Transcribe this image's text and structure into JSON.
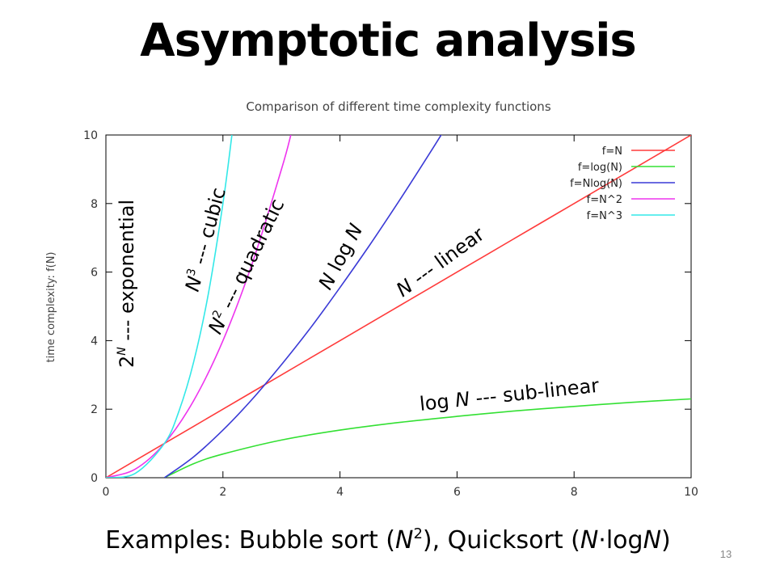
{
  "slide": {
    "title": "Asymptotic analysis",
    "page_number": "13",
    "caption": {
      "prefix": "Examples: Bubble sort (",
      "bubble_term": "N",
      "bubble_exp": "2",
      "middle": "), Quicksort (",
      "quick_n": "N",
      "dot": "·",
      "quick_log": "log",
      "quick_n2": "N",
      "suffix": ")"
    }
  },
  "chart_data": {
    "type": "line",
    "title": "Comparison of different time complexity functions",
    "xlabel": "",
    "ylabel": "time complexity: f(N)",
    "xlim": [
      0,
      10
    ],
    "ylim": [
      0,
      10
    ],
    "xticks": [
      "0",
      "2",
      "4",
      "6",
      "8",
      "10"
    ],
    "yticks": [
      "0",
      "2",
      "4",
      "6",
      "8",
      "10"
    ],
    "grid": false,
    "legend_position": "top-right",
    "series": [
      {
        "name": "f=N",
        "color": "#ff3b3b",
        "x": [
          0,
          1,
          2,
          3,
          4,
          5,
          6,
          7,
          8,
          9,
          10
        ],
        "y": [
          0,
          1,
          2,
          3,
          4,
          5,
          6,
          7,
          8,
          9,
          10
        ]
      },
      {
        "name": "f=log(N)",
        "color": "#33e033",
        "x": [
          1,
          1.5,
          2,
          3,
          4,
          5,
          6,
          7,
          8,
          9,
          10
        ],
        "y": [
          0,
          0.41,
          0.69,
          1.1,
          1.39,
          1.61,
          1.79,
          1.95,
          2.08,
          2.2,
          2.3
        ]
      },
      {
        "name": "f=Nlog(N)",
        "color": "#3a3ad6",
        "x": [
          1,
          1.5,
          2,
          2.5,
          3,
          3.5,
          4,
          4.5,
          5,
          5.5,
          5.75
        ],
        "y": [
          0,
          0.61,
          1.39,
          2.29,
          3.3,
          4.38,
          5.55,
          6.77,
          8.05,
          9.38,
          10.06
        ]
      },
      {
        "name": "f=N^2",
        "color": "#ee33ee",
        "x": [
          0,
          0.5,
          1,
          1.5,
          2,
          2.5,
          3,
          3.16
        ],
        "y": [
          0,
          0.25,
          1,
          2.25,
          4,
          6.25,
          9,
          10
        ]
      },
      {
        "name": "f=N^3",
        "color": "#33e8e8",
        "x": [
          0,
          0.5,
          1,
          1.25,
          1.5,
          1.75,
          2,
          2.154
        ],
        "y": [
          0,
          0.125,
          1,
          1.95,
          3.38,
          5.36,
          8,
          10
        ]
      }
    ],
    "annotations": [
      {
        "name": "exponential",
        "base": "2",
        "sup": "N",
        "text": " --- exponential"
      },
      {
        "name": "cubic",
        "base": "N",
        "sup": "3",
        "text": " --- cubic"
      },
      {
        "name": "quadratic",
        "base": "N",
        "sup": "2",
        "text": " --- quadratic"
      },
      {
        "name": "nlogn",
        "base": "N",
        "mid": " log ",
        "base2": "N",
        "text": ""
      },
      {
        "name": "linear",
        "base": "N",
        "text": " --- linear"
      },
      {
        "name": "sublinear",
        "prefix": "log ",
        "base": "N",
        "text": " --- sub-linear"
      }
    ]
  }
}
